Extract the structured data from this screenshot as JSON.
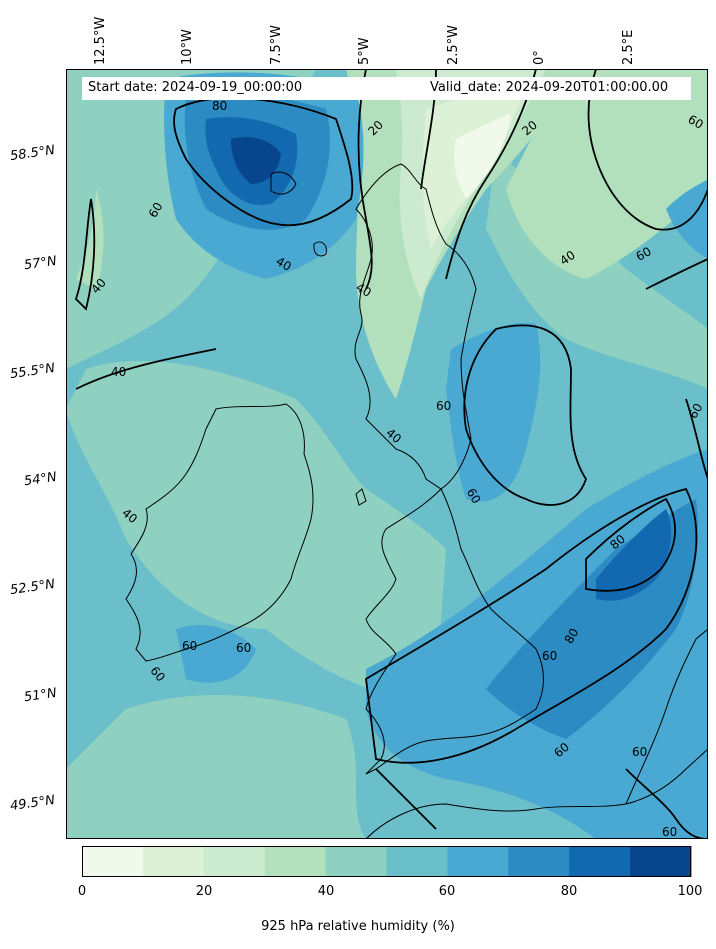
{
  "header": {
    "start_date": "Start date: 2024-09-19_00:00:00",
    "valid_date": "Valid_date: 2024-09-20T01:00:00.00"
  },
  "lon_labels": [
    "12.5°W",
    "10°W",
    "7.5°W",
    "5°W",
    "2.5°W",
    "0°",
    "2.5°E"
  ],
  "lat_labels": [
    "58.5°N",
    "57°N",
    "55.5°N",
    "54°N",
    "52.5°N",
    "51°N",
    "49.5°N"
  ],
  "colorbar": {
    "label": "925 hPa relative humidity (%)",
    "ticks": [
      "0",
      "20",
      "40",
      "60",
      "80",
      "100"
    ],
    "range": [
      0,
      100
    ],
    "colors": [
      "#f1faea",
      "#dcf1d6",
      "#cbead0",
      "#b2e0bd",
      "#8fd1c0",
      "#6bbfca",
      "#4aa9d2",
      "#2d8bc3",
      "#1369b0",
      "#07468d"
    ]
  },
  "contour_labels": [
    "80",
    "20",
    "20",
    "60",
    "40",
    "40",
    "40",
    "40",
    "40",
    "60",
    "60",
    "60",
    "40",
    "60",
    "60",
    "80",
    "80",
    "60",
    "60",
    "60",
    "60",
    "60",
    "60",
    "60",
    "40"
  ]
}
